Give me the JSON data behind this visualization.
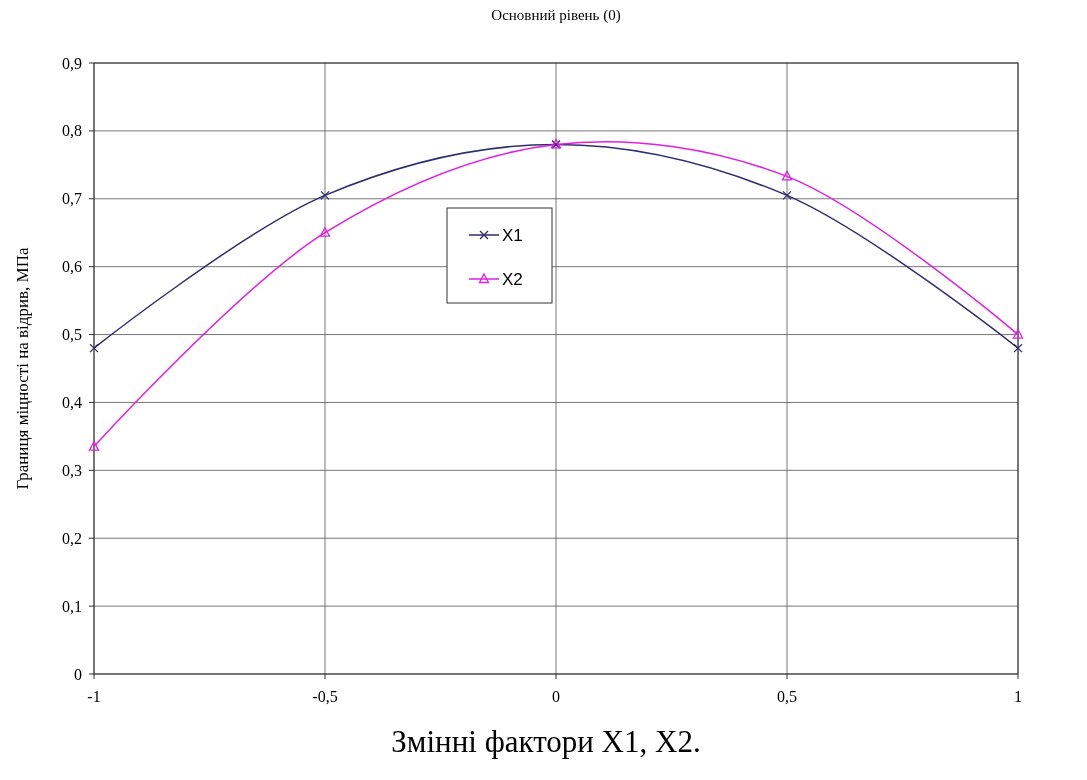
{
  "chart_data": {
    "type": "line",
    "title": "Основний рівень (0)",
    "xlabel": "Змінні фактори  X1, X2.",
    "ylabel": "Границя міцності на відрив, МПа",
    "x": [
      -1,
      -0.5,
      0,
      0.5,
      1
    ],
    "series": [
      {
        "name": "X1",
        "color": "#2e2e6e",
        "marker": "cross",
        "values": [
          0.48,
          0.705,
          0.78,
          0.705,
          0.48
        ]
      },
      {
        "name": "X2",
        "color": "#e020e0",
        "marker": "triangle",
        "values": [
          0.335,
          0.65,
          0.78,
          0.733,
          0.5
        ]
      }
    ],
    "xlim": [
      -1,
      1
    ],
    "xticks": [
      -1,
      {
        "value": -0.5,
        "label": "-0,5"
      },
      0,
      {
        "value": 0.5,
        "label": "0,5"
      },
      1
    ],
    "ylim": [
      0,
      0.9
    ],
    "yticks": [
      0,
      {
        "value": 0.1,
        "label": "0,1"
      },
      {
        "value": 0.2,
        "label": "0,2"
      },
      {
        "value": 0.3,
        "label": "0,3"
      },
      {
        "value": 0.4,
        "label": "0,4"
      },
      {
        "value": 0.5,
        "label": "0,5"
      },
      {
        "value": 0.6,
        "label": "0,6"
      },
      {
        "value": 0.7,
        "label": "0,7"
      },
      {
        "value": 0.8,
        "label": "0,8"
      },
      {
        "value": 0.9,
        "label": "0,9"
      }
    ],
    "grid": true,
    "legend": "center",
    "line_style": "solid"
  }
}
